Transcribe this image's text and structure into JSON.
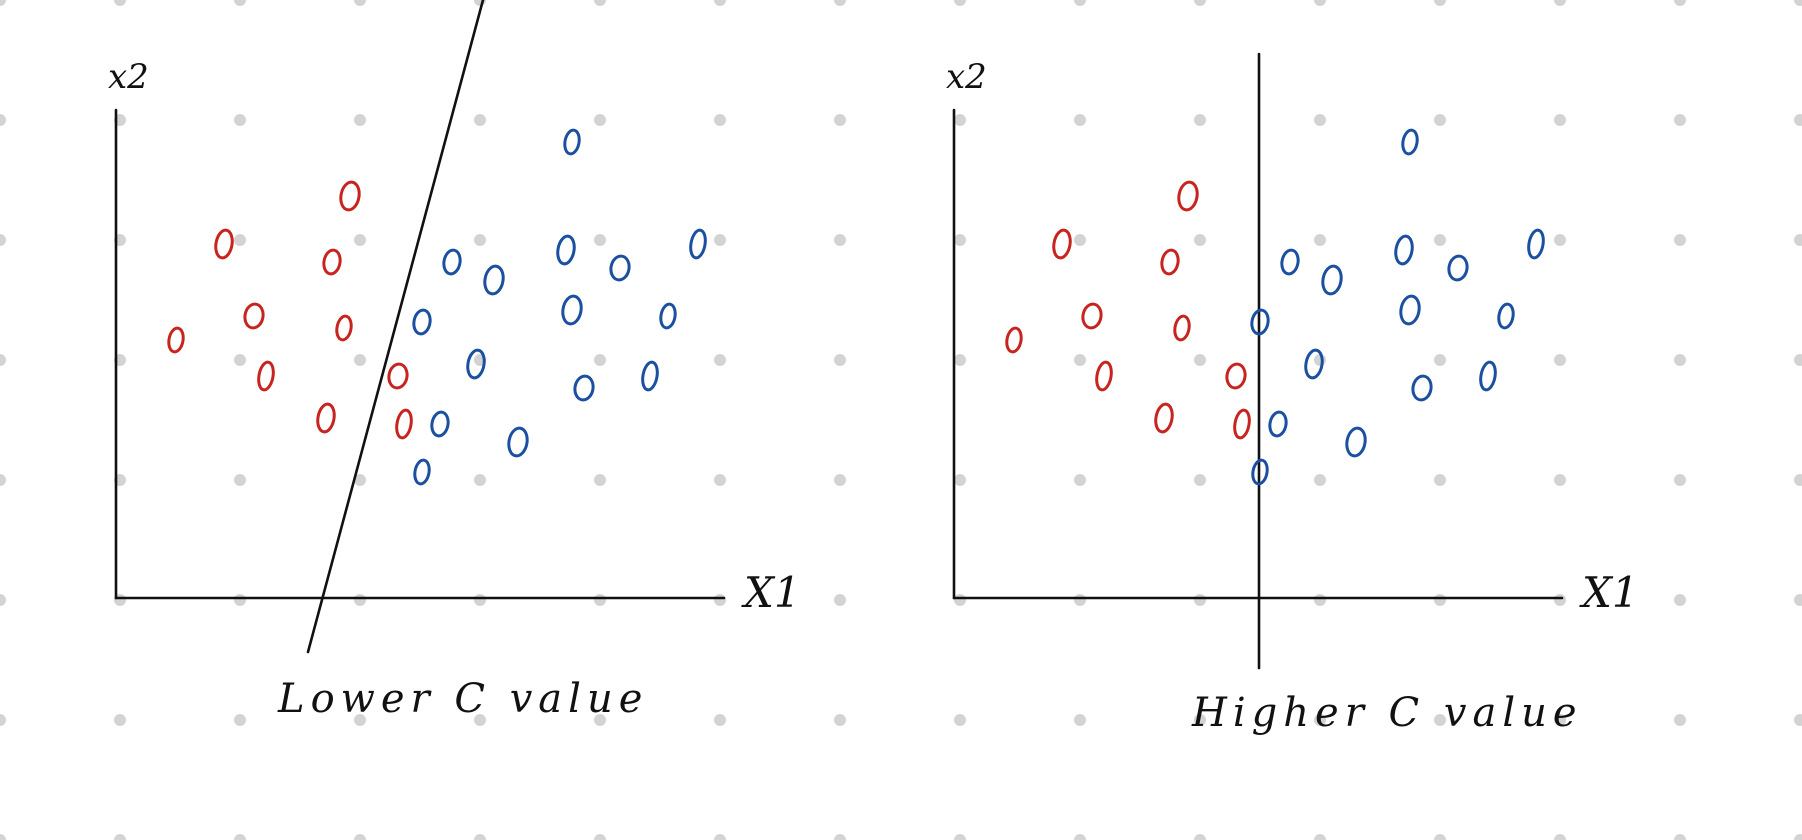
{
  "colors": {
    "class_a": "#c8241f",
    "class_b": "#1b4fa0",
    "ink": "#111111",
    "dot_grid": "#d3d3d3"
  },
  "panels": [
    {
      "id": "left",
      "y_axis_label": "x2",
      "x_axis_label": "X1",
      "caption": "Lower C value"
    },
    {
      "id": "right",
      "y_axis_label": "x2",
      "x_axis_label": "X1",
      "caption": "Higher C value"
    }
  ],
  "points": [
    {
      "cls": "a",
      "x": 1.0,
      "y": 4.3
    },
    {
      "cls": "a",
      "x": 1.8,
      "y": 5.9
    },
    {
      "cls": "a",
      "x": 2.3,
      "y": 4.7
    },
    {
      "cls": "a",
      "x": 2.5,
      "y": 3.7
    },
    {
      "cls": "a",
      "x": 3.6,
      "y": 5.6
    },
    {
      "cls": "a",
      "x": 3.9,
      "y": 6.7
    },
    {
      "cls": "a",
      "x": 3.8,
      "y": 4.5
    },
    {
      "cls": "a",
      "x": 3.5,
      "y": 3.0
    },
    {
      "cls": "a",
      "x": 4.7,
      "y": 3.7
    },
    {
      "cls": "a",
      "x": 4.8,
      "y": 2.9
    },
    {
      "cls": "b",
      "x": 5.6,
      "y": 5.6
    },
    {
      "cls": "b",
      "x": 6.3,
      "y": 5.3
    },
    {
      "cls": "b",
      "x": 7.6,
      "y": 7.6
    },
    {
      "cls": "b",
      "x": 7.5,
      "y": 5.8
    },
    {
      "cls": "b",
      "x": 8.4,
      "y": 5.5
    },
    {
      "cls": "b",
      "x": 9.7,
      "y": 5.9
    },
    {
      "cls": "b",
      "x": 5.1,
      "y": 4.6
    },
    {
      "cls": "b",
      "x": 7.6,
      "y": 4.8
    },
    {
      "cls": "b",
      "x": 9.2,
      "y": 4.7
    },
    {
      "cls": "b",
      "x": 6.0,
      "y": 3.9
    },
    {
      "cls": "b",
      "x": 7.8,
      "y": 3.5
    },
    {
      "cls": "b",
      "x": 8.9,
      "y": 3.7
    },
    {
      "cls": "b",
      "x": 5.4,
      "y": 2.9
    },
    {
      "cls": "b",
      "x": 6.7,
      "y": 2.6
    },
    {
      "cls": "b",
      "x": 5.1,
      "y": 2.1
    }
  ]
}
